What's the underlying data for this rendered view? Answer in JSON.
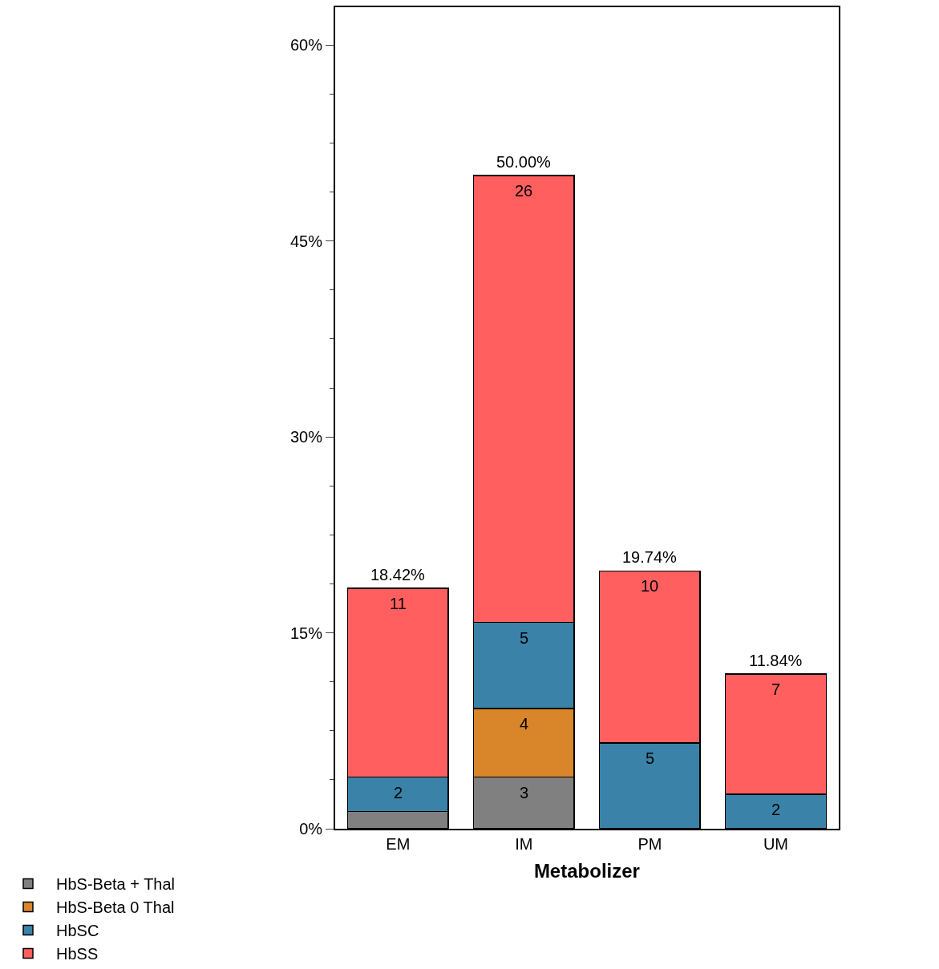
{
  "chart_data": {
    "type": "bar",
    "stacked": true,
    "xlabel": "Metabolizer",
    "categories": [
      "EM",
      "IM",
      "PM",
      "UM"
    ],
    "series": [
      {
        "name": "HbS-Beta + Thal",
        "color": "#808080",
        "values": [
          1.32,
          3.95,
          null,
          null
        ]
      },
      {
        "name": "HbS-Beta 0 Thal",
        "color": "#d9862b",
        "values": [
          null,
          5.26,
          null,
          null
        ]
      },
      {
        "name": "HbSC",
        "color": "#3a82a8",
        "values": [
          2.63,
          6.58,
          6.58,
          2.63
        ]
      },
      {
        "name": "HbSS",
        "color": "#ff5f5f",
        "values": [
          14.47,
          34.21,
          13.16,
          9.21
        ]
      }
    ],
    "annotations": [
      {
        "text": "3",
        "x": "IM",
        "y": 3.95
      },
      {
        "text": "4",
        "x": "IM",
        "y": 9.21
      },
      {
        "text": "2",
        "x": "EM",
        "y": 3.95
      },
      {
        "text": "5",
        "x": "IM",
        "y": 15.79
      },
      {
        "text": "5",
        "x": "PM",
        "y": 6.58
      },
      {
        "text": "2",
        "x": "UM",
        "y": 2.63
      },
      {
        "text": "11",
        "x": "EM",
        "y": 18.42
      },
      {
        "text": "26",
        "x": "IM",
        "y": 50.0
      },
      {
        "text": "10",
        "x": "PM",
        "y": 19.74
      },
      {
        "text": "7",
        "x": "UM",
        "y": 11.84
      }
    ],
    "totals": [
      "18.42%",
      "50.00%",
      "19.74%",
      "11.84%"
    ],
    "ylim": [
      0,
      62.9
    ],
    "yticks": [
      {
        "value": 0,
        "label": "0%"
      },
      {
        "value": 3.75,
        "label": null
      },
      {
        "value": 7.5,
        "label": null
      },
      {
        "value": 11.25,
        "label": null
      },
      {
        "value": 15,
        "label": "15%"
      },
      {
        "value": 18.75,
        "label": null
      },
      {
        "value": 22.5,
        "label": null
      },
      {
        "value": 26.25,
        "label": null
      },
      {
        "value": 30,
        "label": "30%"
      },
      {
        "value": 33.75,
        "label": null
      },
      {
        "value": 37.5,
        "label": null
      },
      {
        "value": 41.25,
        "label": null
      },
      {
        "value": 45,
        "label": "45%"
      },
      {
        "value": 48.75,
        "label": null
      },
      {
        "value": 52.5,
        "label": null
      },
      {
        "value": 56.25,
        "label": null
      },
      {
        "value": 60,
        "label": "60%"
      }
    ],
    "legend": "bottom"
  }
}
